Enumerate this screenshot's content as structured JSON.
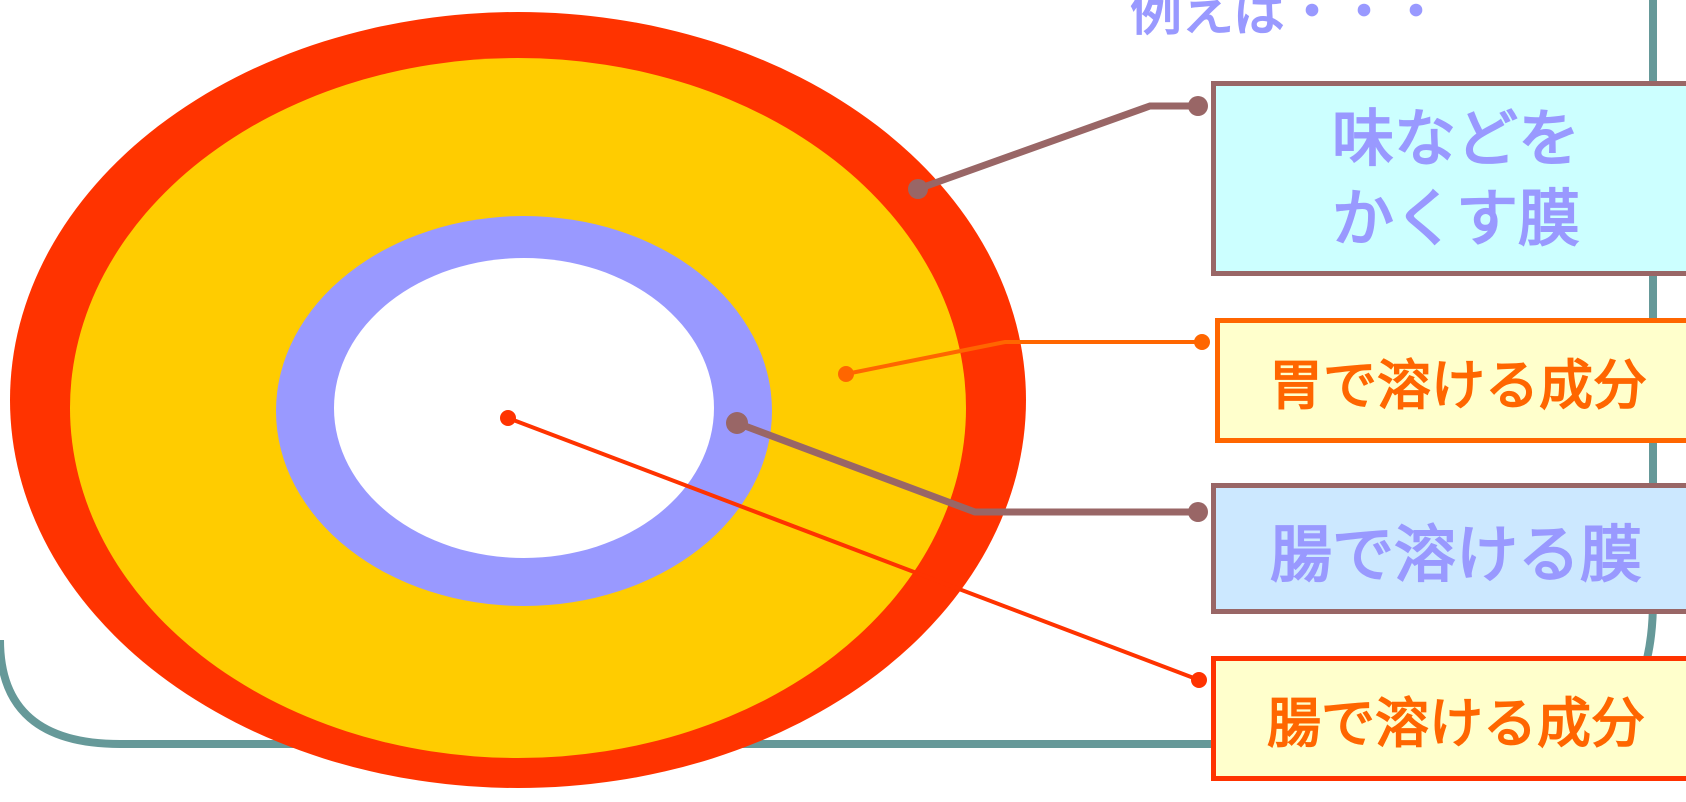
{
  "labels": {
    "top_partial": "例えば・・・",
    "taste_film": "味などを\nかくす膜",
    "stomach_component": "胃で溶ける成分",
    "intestine_film": "腸で溶ける膜",
    "intestine_component": "腸で溶ける成分"
  },
  "colors": {
    "outer_layer": "#ff3300",
    "stomach_layer": "#ffcc00",
    "intestine_film_layer": "#9999ff",
    "core": "#ffffff",
    "frame": "#669999",
    "connector_brown": "#996666",
    "connector_orange": "#ff6600",
    "connector_red": "#ff3300"
  }
}
